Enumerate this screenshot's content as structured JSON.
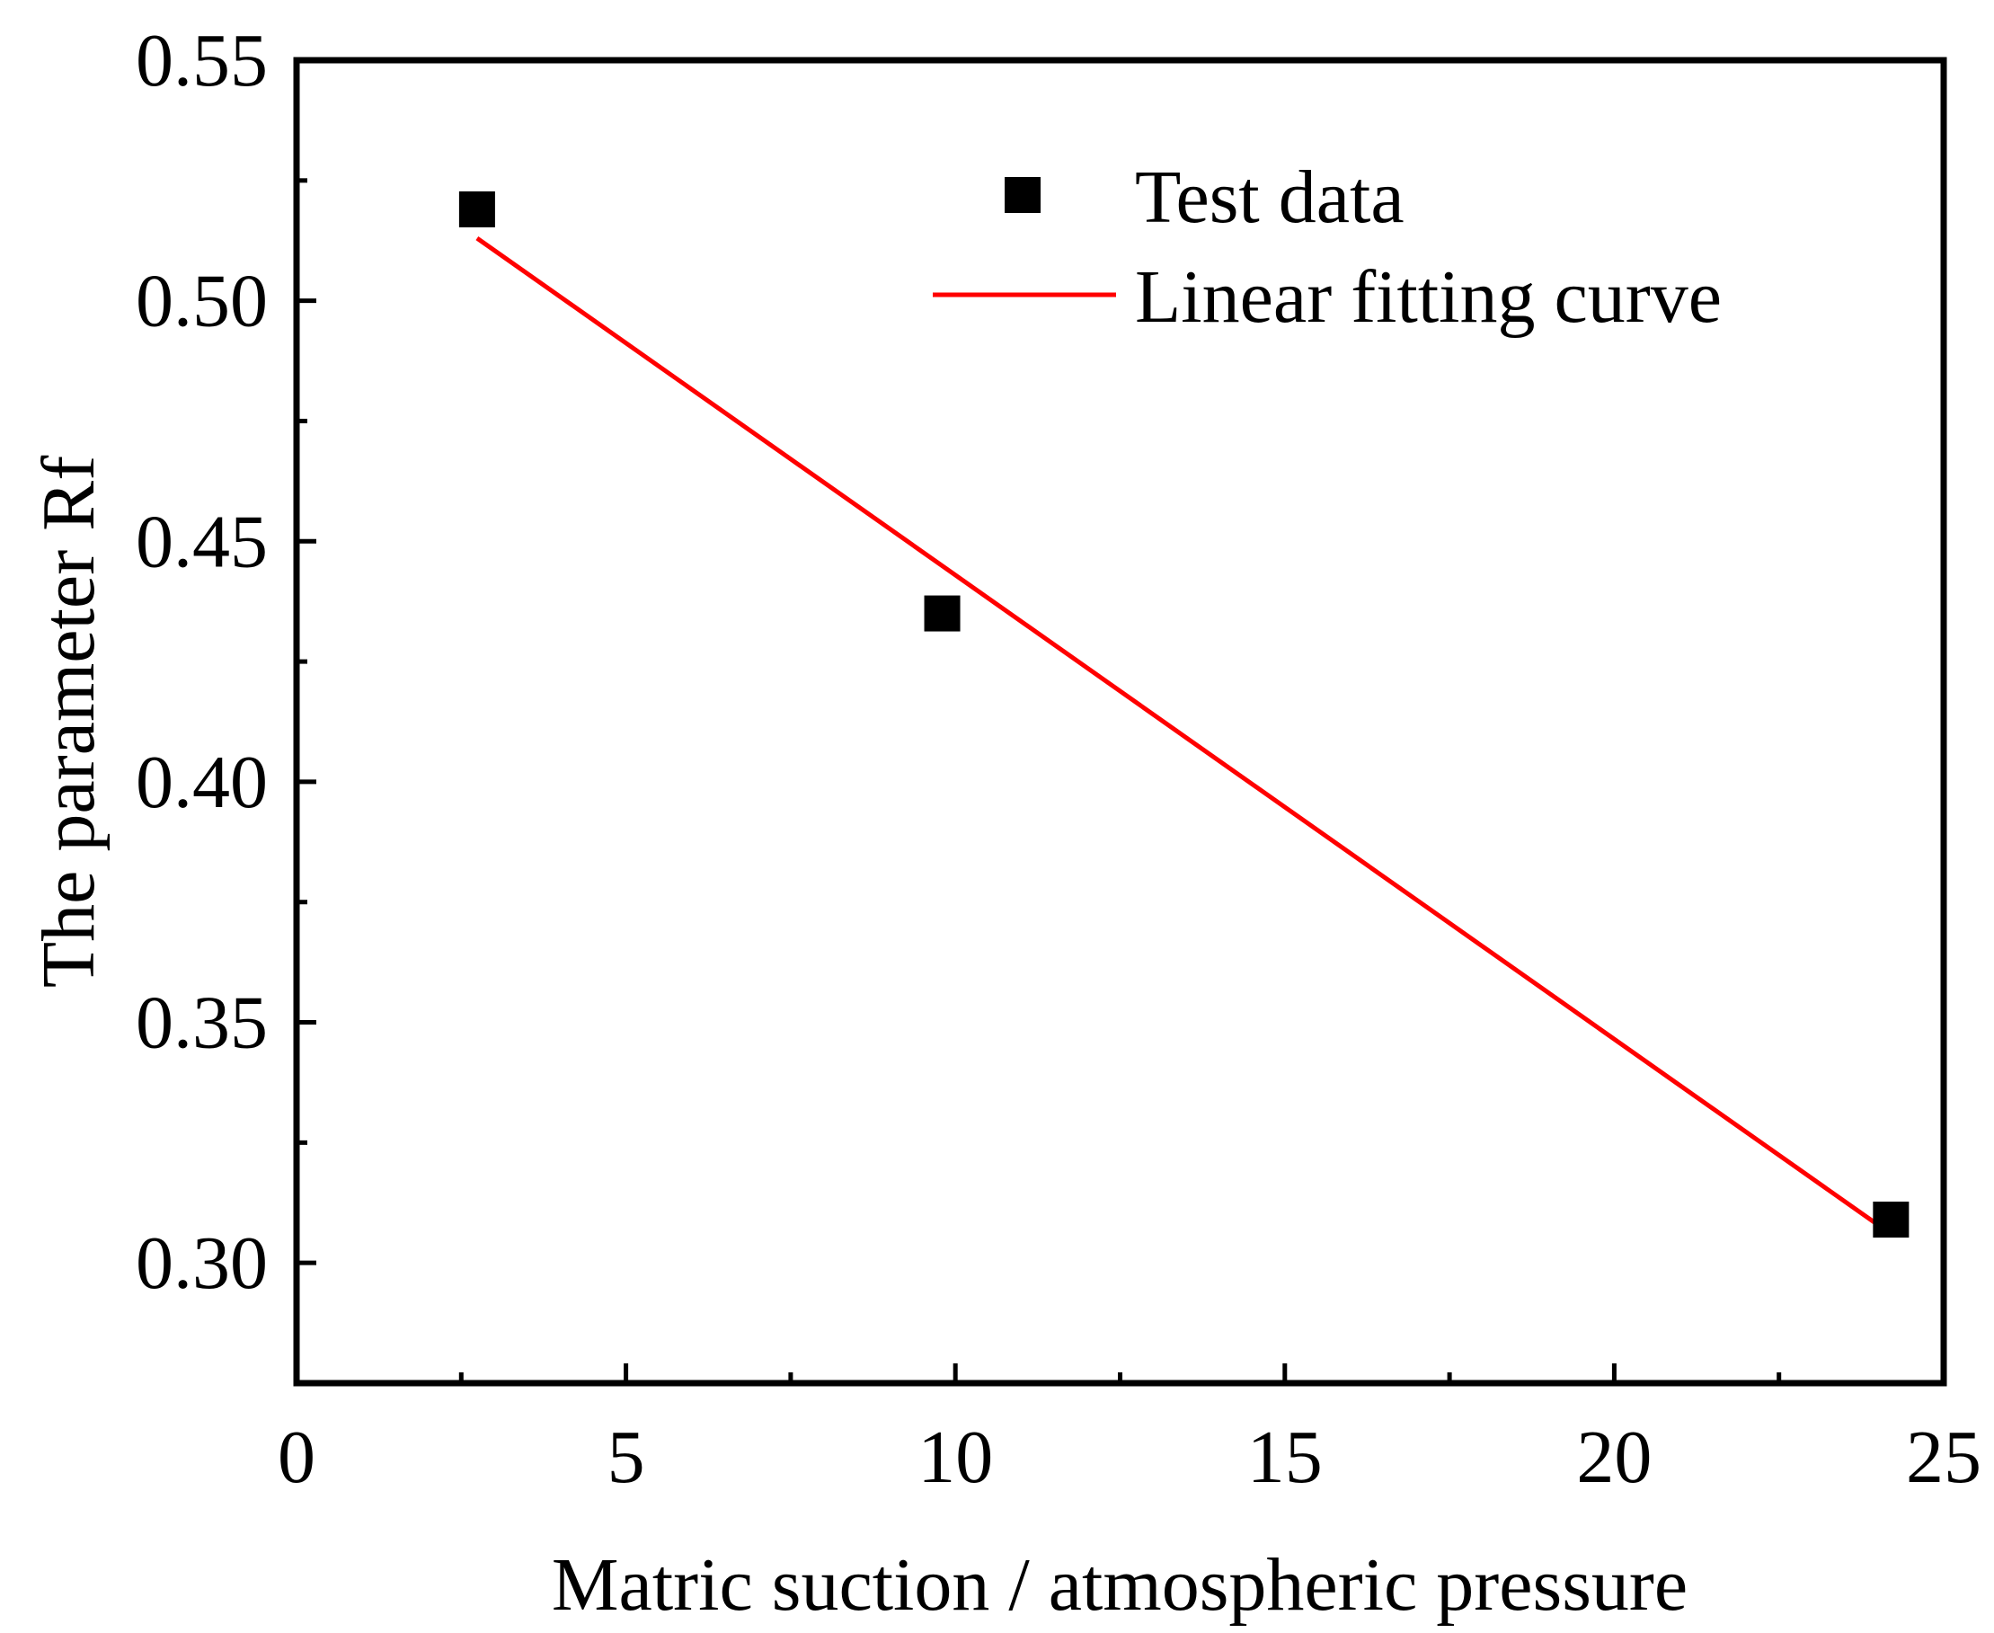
{
  "chart_data": {
    "type": "scatter",
    "title": "",
    "xlabel": "Matric suction /  atmospheric pressure",
    "ylabel": "The parameter Rf",
    "xlim": [
      0,
      25
    ],
    "ylim": [
      0.275,
      0.55
    ],
    "xticks": [
      "0",
      "5",
      "10",
      "15",
      "20",
      "25"
    ],
    "yticks": [
      "0.30",
      "0.35",
      "0.40",
      "0.45",
      "0.50",
      "0.55"
    ],
    "xtick_values": [
      0,
      5,
      10,
      15,
      20,
      25
    ],
    "ytick_values": [
      0.3,
      0.35,
      0.4,
      0.45,
      0.5,
      0.55
    ],
    "x_minor_ticks": [
      2.5,
      7.5,
      12.5,
      17.5,
      22.5
    ],
    "y_minor_ticks": [
      0.325,
      0.375,
      0.425,
      0.475,
      0.525
    ],
    "grid": false,
    "legend_position": "top-right",
    "series": [
      {
        "name": "Test data",
        "kind": "scatter",
        "marker": "square",
        "color": "#000000",
        "x": [
          2.74,
          9.8,
          24.2
        ],
        "y": [
          0.519,
          0.435,
          0.309
        ]
      },
      {
        "name": "Linear fitting curve",
        "kind": "line",
        "color": "#ff0000",
        "x": [
          2.74,
          24.2
        ],
        "y": [
          0.513,
          0.306
        ]
      }
    ]
  }
}
